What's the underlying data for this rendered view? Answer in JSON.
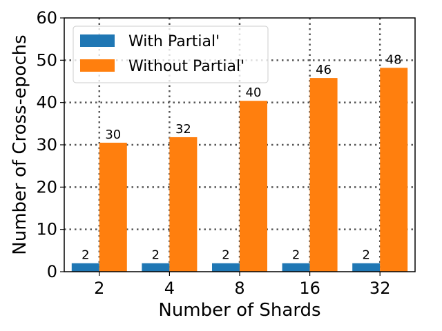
{
  "chart_data": {
    "type": "bar",
    "categories": [
      "2",
      "4",
      "8",
      "16",
      "32"
    ],
    "series": [
      {
        "name": "With Partial'",
        "values": [
          2,
          2,
          2,
          2,
          2
        ],
        "color": "#1f77b4"
      },
      {
        "name": "Without Partial'",
        "values": [
          30.5,
          31.8,
          40.4,
          45.8,
          48.2
        ],
        "color": "#ff7f0e"
      }
    ],
    "data_labels": [
      [
        "2",
        "2",
        "2",
        "2",
        "2"
      ],
      [
        "30",
        "32",
        "40",
        "46",
        "48"
      ]
    ],
    "xlabel": "Number of Shards",
    "ylabel": "Number of Cross-epochs",
    "ylim": [
      0,
      60
    ],
    "yticks": [
      0,
      10,
      20,
      30,
      40,
      50,
      60
    ],
    "grid": true,
    "legend_position": "top-left"
  }
}
